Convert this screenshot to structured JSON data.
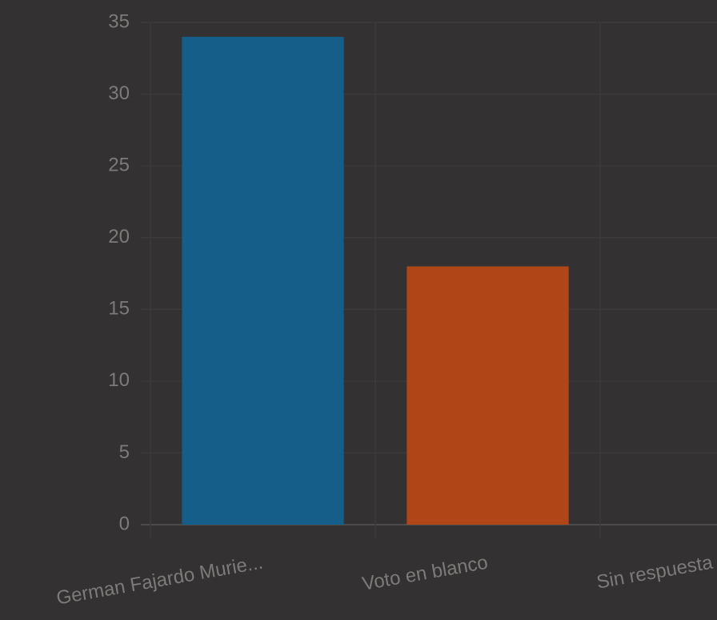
{
  "chart_data": {
    "type": "bar",
    "categories": [
      "German Fajardo Murie...",
      "Voto en blanco",
      "Sin respuesta"
    ],
    "values": [
      34,
      18,
      0
    ],
    "palette": [
      "#155e8a",
      "#b04517"
    ],
    "ylim": [
      0,
      35
    ],
    "yticks": [
      0,
      5,
      10,
      15,
      20,
      25,
      30,
      35
    ],
    "grid": true
  }
}
